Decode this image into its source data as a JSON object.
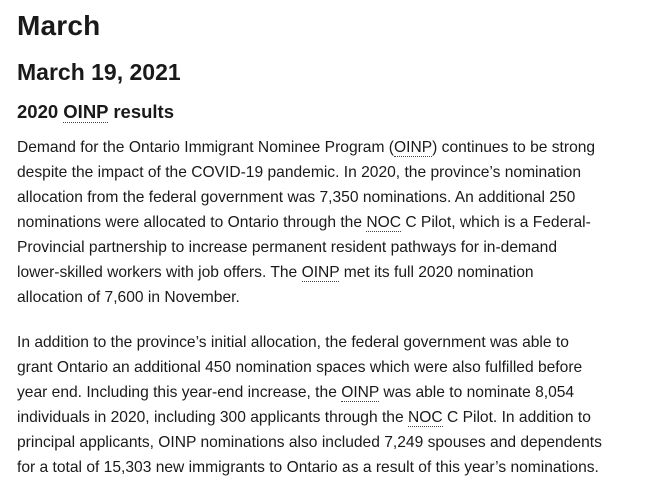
{
  "headings": {
    "month": "March",
    "date": "March 19, 2021",
    "section": [
      "2020 ",
      "OINP",
      " results"
    ]
  },
  "paragraphs": [
    [
      [
        "Demand for the Ontario Immigrant Nominee Program (",
        "OINP",
        ") continues to be strong"
      ],
      [
        "despite the impact of the COVID-19 pandemic. In 2020, the province’s nomination"
      ],
      [
        "allocation from the federal government was 7,350 nominations. An additional 250"
      ],
      [
        "nominations were allocated to Ontario through the ",
        "NOC",
        " C Pilot, which is a Federal-"
      ],
      [
        "Provincial partnership to increase permanent resident pathways for in-demand"
      ],
      [
        "lower-skilled workers with job offers. The ",
        "OINP",
        " met its full 2020 nomination"
      ],
      [
        "allocation of 7,600 in November."
      ]
    ],
    [
      [
        "In addition to the province’s initial allocation, the federal government was able to"
      ],
      [
        "grant Ontario an additional 450 nomination spaces which were also fulfilled before"
      ],
      [
        "year end. Including this year-end increase, the ",
        "OINP",
        " was able to nominate 8,054"
      ],
      [
        "individuals in 2020, including 300 applicants through the ",
        "NOC",
        " C Pilot. In addition to"
      ],
      [
        "principal applicants, OINP nominations also included 7,249 spouses and dependents"
      ],
      [
        "for a total of 15,303 new immigrants to Ontario as a result of this year’s nominations."
      ]
    ]
  ]
}
